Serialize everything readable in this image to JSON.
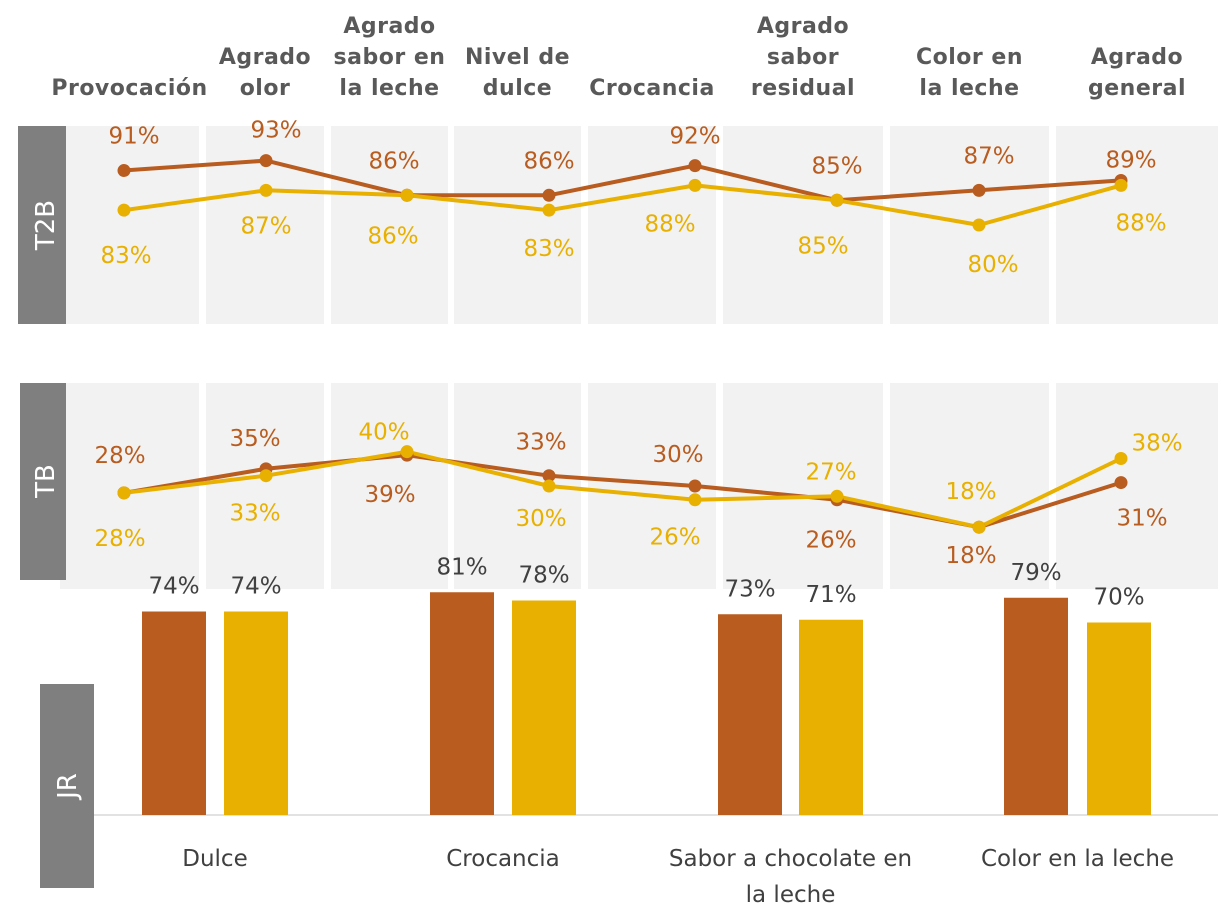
{
  "colors": {
    "series_a": "#b85c1f",
    "series_b": "#e8b000",
    "panel_bg": "#f2f2f2",
    "row_tab": "#7f7f7f",
    "axis": "#d9d9d9"
  },
  "chart_data": [
    {
      "type": "line",
      "row_label": "T2B",
      "categories": [
        [
          "Provocación"
        ],
        [
          "Agrado",
          "olor"
        ],
        [
          "Agrado",
          "sabor en",
          "la leche"
        ],
        [
          "Nivel de",
          "dulce"
        ],
        [
          "Crocancia"
        ],
        [
          "Agrado",
          "sabor",
          "residual"
        ],
        [
          "Color en",
          "la leche"
        ],
        [
          "Agrado",
          "general"
        ]
      ],
      "ylim": [
        0.6,
        1.0
      ],
      "series": [
        {
          "color": "#b85c1f",
          "values": [
            0.91,
            0.93,
            0.86,
            0.86,
            0.92,
            0.85,
            0.87,
            0.89
          ],
          "labels": [
            "91%",
            "93%",
            "86%",
            "86%",
            "92%",
            "85%",
            "87%",
            "89%"
          ]
        },
        {
          "color": "#e8b000",
          "values": [
            0.83,
            0.87,
            0.86,
            0.83,
            0.88,
            0.85,
            0.8,
            0.88
          ],
          "labels": [
            "83%",
            "87%",
            "86%",
            "83%",
            "88%",
            "85%",
            "80%",
            "88%"
          ]
        }
      ]
    },
    {
      "type": "line",
      "row_label": "TB",
      "ylim": [
        0.0,
        0.6
      ],
      "series": [
        {
          "color": "#b85c1f",
          "values": [
            0.28,
            0.35,
            0.39,
            0.33,
            0.3,
            0.26,
            0.18,
            0.31
          ],
          "labels": [
            "28%",
            "35%",
            "39%",
            "33%",
            "30%",
            "26%",
            "18%",
            "31%"
          ]
        },
        {
          "color": "#e8b000",
          "values": [
            0.28,
            0.33,
            0.4,
            0.3,
            0.26,
            0.27,
            0.18,
            0.38
          ],
          "labels": [
            "28%",
            "33%",
            "40%",
            "30%",
            "26%",
            "27%",
            "18%",
            "38%"
          ]
        }
      ]
    },
    {
      "type": "bar",
      "row_label": "JR",
      "categories": [
        [
          "Dulce"
        ],
        [
          "Crocancia"
        ],
        [
          "Sabor a chocolate en",
          "la leche"
        ],
        [
          "Color en la leche"
        ]
      ],
      "ylim": [
        0,
        1.0
      ],
      "series": [
        {
          "color": "#b85c1f",
          "values": [
            0.74,
            0.81,
            0.73,
            0.79
          ],
          "labels": [
            "74%",
            "81%",
            "73%",
            "79%"
          ]
        },
        {
          "color": "#e8b000",
          "values": [
            0.74,
            0.78,
            0.71,
            0.7
          ],
          "labels": [
            "74%",
            "78%",
            "71%",
            "70%"
          ]
        }
      ]
    }
  ]
}
